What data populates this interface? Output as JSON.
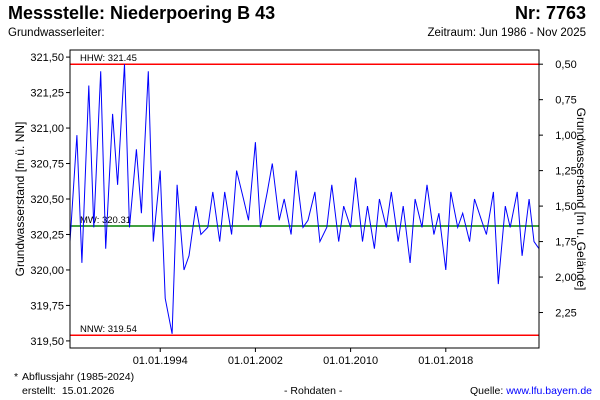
{
  "header": {
    "title": "Messstelle: Niederpoering B 43",
    "number": "Nr: 7763",
    "aquifer_label": "Grundwasserleiter:",
    "period": "Zeitraum: Jun 1986 - Nov 2025"
  },
  "footer": {
    "star": "*",
    "note": "Abflussjahr (1985-2024)",
    "created_label": "erstellt:",
    "created_date": "15.01.2026",
    "raw": "- Rohdaten -",
    "source_label": "Quelle:",
    "source_url": "www.lfu.bayern.de"
  },
  "colors": {
    "series": "#0000ff",
    "extreme_lines": "#ff0000",
    "mean_line": "#008000",
    "frame": "#000000"
  },
  "chart_data": {
    "type": "line",
    "ylabel": "Grundwasserstand [m ü. NN]",
    "y2label": "Grundwasserstand [m u. Gelände]",
    "ylim": [
      319.45,
      321.55
    ],
    "y_ticks": [
      "321,50",
      "321,25",
      "321,00",
      "320,75",
      "320,50",
      "320,25",
      "320,00",
      "319,75",
      "319,50"
    ],
    "y_tick_values": [
      321.5,
      321.25,
      321.0,
      320.75,
      320.5,
      320.25,
      320.0,
      319.75,
      319.5
    ],
    "y2_ticks": [
      "0,50",
      "0,75",
      "1,00",
      "1,25",
      "1,50",
      "1,75",
      "2,00",
      "2,25"
    ],
    "y2_tick_values": [
      0.5,
      0.75,
      1.0,
      1.25,
      1.5,
      1.75,
      2.0,
      2.25
    ],
    "ground_level": 321.95,
    "xlim": [
      "1986-06",
      "2025-11"
    ],
    "x_ticks": [
      "01.01.1994",
      "01.01.2002",
      "01.01.2010",
      "01.01.2018"
    ],
    "x_tick_dates": [
      "1994-01-01",
      "2002-01-01",
      "2010-01-01",
      "2018-01-01"
    ],
    "reference_lines": [
      {
        "label": "HHW: 321.45",
        "value": 321.45,
        "kind": "extreme"
      },
      {
        "label": "MW: 320.31",
        "value": 320.31,
        "kind": "mean"
      },
      {
        "label": "NNW: 319.54",
        "value": 319.54,
        "kind": "extreme"
      }
    ],
    "series": [
      {
        "dates": [
          "1986-06",
          "1987-01",
          "1987-06",
          "1988-01",
          "1988-06",
          "1989-01",
          "1989-06",
          "1990-01",
          "1990-06",
          "1991-01",
          "1991-06",
          "1992-01",
          "1992-06",
          "1993-01",
          "1993-06",
          "1994-01",
          "1994-06",
          "1995-01",
          "1995-06",
          "1996-01",
          "1996-06",
          "1997-01",
          "1997-06",
          "1998-01",
          "1998-06",
          "1999-01",
          "1999-06",
          "2000-01",
          "2000-06",
          "2001-01",
          "2001-06",
          "2002-01",
          "2002-06",
          "2003-01",
          "2003-06",
          "2004-01",
          "2004-06",
          "2005-01",
          "2005-06",
          "2006-01",
          "2006-06",
          "2007-01",
          "2007-06",
          "2008-01",
          "2008-06",
          "2009-01",
          "2009-06",
          "2010-01",
          "2010-06",
          "2011-01",
          "2011-06",
          "2012-01",
          "2012-06",
          "2013-01",
          "2013-06",
          "2014-01",
          "2014-06",
          "2015-01",
          "2015-06",
          "2016-01",
          "2016-06",
          "2017-01",
          "2017-06",
          "2018-01",
          "2018-06",
          "2019-01",
          "2019-06",
          "2020-01",
          "2020-06",
          "2021-01",
          "2021-06",
          "2022-01",
          "2022-06",
          "2023-01",
          "2023-06",
          "2024-01",
          "2024-06",
          "2025-01",
          "2025-06",
          "2025-11"
        ],
        "values": [
          320.2,
          320.95,
          320.05,
          321.3,
          320.3,
          321.4,
          320.15,
          321.1,
          320.6,
          321.45,
          320.3,
          320.85,
          320.4,
          321.4,
          320.2,
          320.7,
          319.8,
          319.55,
          320.6,
          320.0,
          320.1,
          320.45,
          320.25,
          320.3,
          320.55,
          320.2,
          320.55,
          320.25,
          320.7,
          320.5,
          320.35,
          320.9,
          320.3,
          320.55,
          320.75,
          320.35,
          320.5,
          320.25,
          320.7,
          320.3,
          320.35,
          320.55,
          320.2,
          320.3,
          320.6,
          320.2,
          320.45,
          320.3,
          320.65,
          320.2,
          320.45,
          320.15,
          320.5,
          320.3,
          320.55,
          320.2,
          320.45,
          320.05,
          320.5,
          320.3,
          320.6,
          320.25,
          320.4,
          320.0,
          320.55,
          320.3,
          320.4,
          320.2,
          320.5,
          320.35,
          320.25,
          320.55,
          319.9,
          320.45,
          320.3,
          320.55,
          320.1,
          320.5,
          320.2,
          320.15
        ]
      }
    ]
  }
}
